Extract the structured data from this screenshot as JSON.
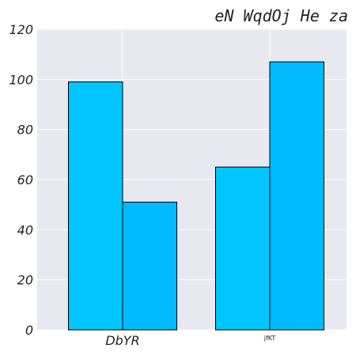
{
  "chart_data": {
    "type": "bar",
    "title": "eN WqdOj He za",
    "xlabel": "",
    "ylabel": "",
    "categories": [
      "DbYR",
      "jfKT"
    ],
    "series": [
      {
        "color": "#00c5ff",
        "values": [
          99,
          65
        ]
      },
      {
        "color": "#00bbff",
        "values": [
          51,
          107
        ]
      }
    ],
    "ylim": [
      0,
      120
    ],
    "yticks": [
      0,
      20,
      40,
      60,
      80,
      100,
      120
    ],
    "grid": true,
    "legend": "none",
    "colors": {
      "plot_background": "#e8e8f0",
      "grid": "#ffffff",
      "bar_edge": "#000000"
    }
  }
}
